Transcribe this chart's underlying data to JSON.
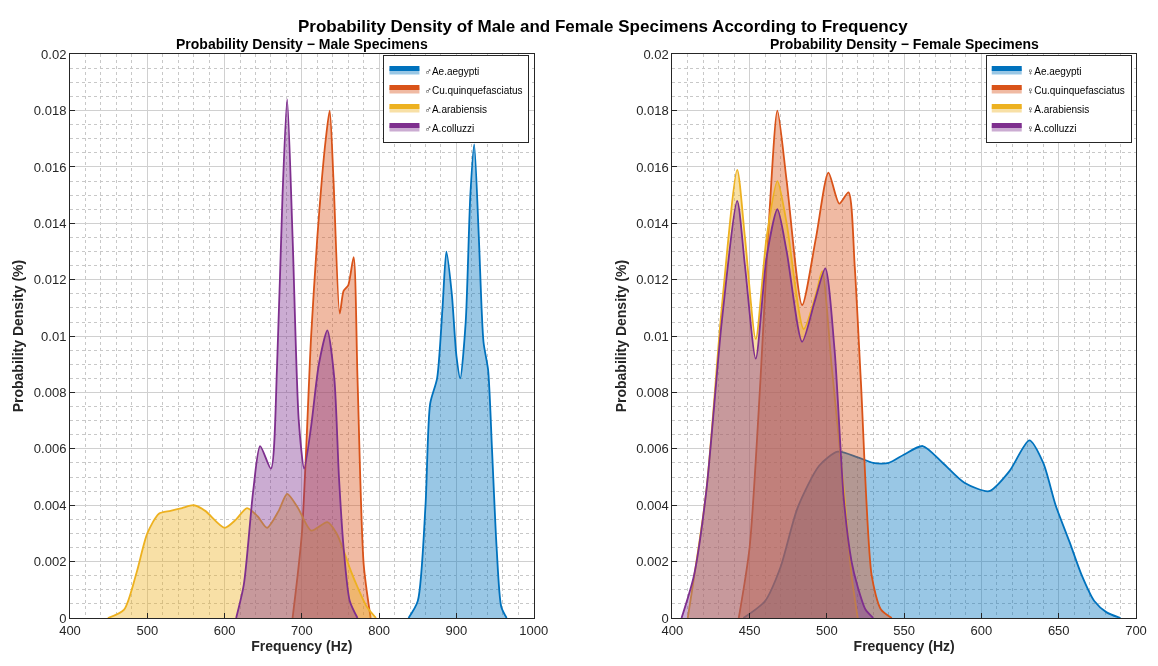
{
  "chart_data": [
    {
      "type": "area",
      "title": "Probability Density − Male Specimens",
      "annotations": [
        "Probability Density of Male and Female Specimens According to Frequency"
      ],
      "xlabel": "Frequency (Hz)",
      "ylabel": "Probability Density (%)",
      "xlim": [
        400,
        1000
      ],
      "xticks": [
        400,
        500,
        600,
        700,
        800,
        900,
        1000
      ],
      "ylim": [
        0,
        0.02
      ],
      "yticks": [
        0,
        0.002,
        0.004,
        0.006,
        0.008,
        0.01,
        0.012,
        0.014,
        0.016,
        0.018,
        0.02
      ],
      "grid": true,
      "legend": "top right",
      "series": [
        {
          "name": "♂Ae.aegypti",
          "color": "#0072bd",
          "x": [
            838,
            850,
            860,
            866,
            875,
            882,
            887,
            894,
            900,
            905,
            912,
            918,
            923,
            929,
            935,
            941,
            946,
            952,
            958,
            965
          ],
          "values": [
            0,
            0.0006,
            0.004,
            0.0076,
            0.0085,
            0.011,
            0.013,
            0.0115,
            0.0093,
            0.0085,
            0.0105,
            0.015,
            0.0168,
            0.0135,
            0.0098,
            0.0088,
            0.006,
            0.0025,
            0.0004,
            0
          ]
        },
        {
          "name": "♂Cu.quinquefasciatus",
          "color": "#d95319",
          "x": [
            688,
            700,
            712,
            720,
            726,
            731,
            736,
            741,
            749,
            754,
            760,
            767,
            772,
            780,
            789
          ],
          "values": [
            0,
            0.003,
            0.01,
            0.0135,
            0.0156,
            0.017,
            0.018,
            0.0155,
            0.0108,
            0.0116,
            0.0118,
            0.0128,
            0.0085,
            0.0019,
            0
          ]
        },
        {
          "name": "♂A.arabiensis",
          "color": "#edb120",
          "x": [
            449,
            470,
            486,
            500,
            515,
            530,
            545,
            560,
            575,
            600,
            615,
            629,
            643,
            655,
            670,
            681,
            695,
            712,
            733,
            745,
            754,
            763,
            772,
            784,
            796
          ],
          "values": [
            0,
            0.0003,
            0.0016,
            0.003,
            0.0037,
            0.0038,
            0.0039,
            0.004,
            0.0038,
            0.0032,
            0.0035,
            0.0039,
            0.0036,
            0.0032,
            0.0038,
            0.0044,
            0.0039,
            0.0031,
            0.0034,
            0.003,
            0.0024,
            0.0017,
            0.0011,
            0.0004,
            0
          ]
        },
        {
          "name": "♂A.colluzzi",
          "color": "#7e2f8e",
          "x": [
            615,
            625,
            637,
            646,
            660,
            668,
            675,
            681,
            688,
            696,
            703,
            712,
            722,
            733,
            742,
            748,
            754,
            762,
            772
          ],
          "values": [
            0,
            0.0012,
            0.0045,
            0.0061,
            0.0053,
            0.009,
            0.015,
            0.0184,
            0.0135,
            0.007,
            0.0053,
            0.0068,
            0.009,
            0.0102,
            0.0085,
            0.005,
            0.0025,
            0.0006,
            0
          ]
        }
      ]
    },
    {
      "type": "area",
      "title": "Probability Density − Female Specimens",
      "xlabel": "Frequency (Hz)",
      "ylabel": "Probability Density (%)",
      "xlim": [
        400,
        700
      ],
      "xticks": [
        400,
        450,
        500,
        550,
        600,
        650,
        700
      ],
      "ylim": [
        0,
        0.02
      ],
      "yticks": [
        0,
        0.002,
        0.004,
        0.006,
        0.008,
        0.01,
        0.012,
        0.014,
        0.016,
        0.018,
        0.02
      ],
      "grid": true,
      "legend": "top right",
      "series": [
        {
          "name": "♀Ae.aegypti",
          "color": "#0072bd",
          "x": [
            446,
            460,
            470,
            481,
            495,
            507,
            520,
            530,
            540,
            550,
            562,
            575,
            589,
            605,
            618,
            631,
            640,
            648,
            657,
            665,
            673,
            681,
            690
          ],
          "values": [
            0,
            0.0006,
            0.0018,
            0.0039,
            0.0054,
            0.0059,
            0.0057,
            0.0055,
            0.0055,
            0.0058,
            0.0061,
            0.0055,
            0.0048,
            0.0045,
            0.0052,
            0.0063,
            0.0055,
            0.004,
            0.0027,
            0.0015,
            0.0006,
            0.0002,
            0
          ]
        },
        {
          "name": "♀Cu.quinquefasciatus",
          "color": "#d95319",
          "x": [
            443,
            450,
            457,
            463,
            468,
            474,
            484,
            493,
            501,
            508,
            514,
            518,
            522,
            529,
            535,
            542
          ],
          "values": [
            0,
            0.0025,
            0.0084,
            0.0145,
            0.018,
            0.0155,
            0.0111,
            0.0135,
            0.0158,
            0.0147,
            0.0151,
            0.0125,
            0.0084,
            0.0015,
            0.0003,
            0
          ]
        },
        {
          "name": "♀A.arabiensis",
          "color": "#edb120",
          "x": [
            410,
            422,
            432,
            442,
            447,
            454,
            461,
            468,
            474,
            485,
            493,
            497,
            503,
            511,
            516,
            520
          ],
          "values": [
            0,
            0.0045,
            0.011,
            0.0159,
            0.0135,
            0.0099,
            0.0135,
            0.0155,
            0.014,
            0.01025,
            0.0115,
            0.0123,
            0.009,
            0.0045,
            0.0015,
            0
          ]
        },
        {
          "name": "♀A.colluzzi",
          "color": "#7e2f8e",
          "x": [
            406,
            414,
            422,
            432,
            442,
            447,
            454,
            461,
            468,
            474,
            484,
            492,
            499,
            505,
            511,
            516,
            520,
            525,
            530
          ],
          "values": [
            0,
            0.0015,
            0.0045,
            0.0105,
            0.0148,
            0.0125,
            0.0092,
            0.0128,
            0.0145,
            0.013,
            0.0098,
            0.0112,
            0.0124,
            0.0095,
            0.0042,
            0.002,
            0.0011,
            0.0003,
            0
          ]
        }
      ]
    }
  ]
}
